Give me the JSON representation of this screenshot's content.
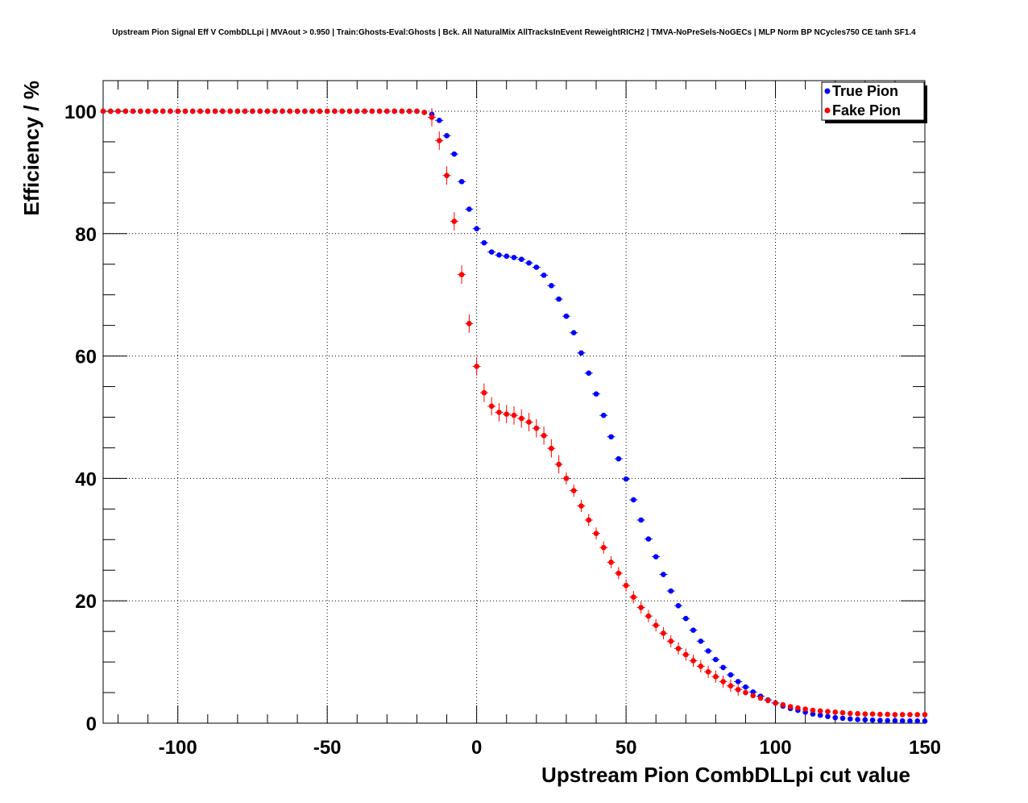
{
  "chart_data": {
    "type": "scatter",
    "title": "Upstream Pion Signal Eff V CombDLLpi | MVAout > 0.950 | Train:Ghosts-Eval:Ghosts | Bck. All NaturalMix AllTracksInEvent ReweightRICH2 | TMVA-NoPreSels-NoGECs | MLP Norm BP NCycles750 CE tanh SF1.4",
    "xlabel": "Upstream Pion CombDLLpi cut value",
    "ylabel": "Efficiency / %",
    "xlim": [
      -125,
      150
    ],
    "ylim": [
      0,
      105
    ],
    "x_ticks": [
      -100,
      -50,
      0,
      50,
      100,
      150
    ],
    "x_tick_labels": [
      "-100",
      "-50",
      "0",
      "50",
      "100",
      "150"
    ],
    "y_ticks": [
      0,
      20,
      40,
      60,
      80,
      100
    ],
    "y_tick_labels": [
      "0",
      "20",
      "40",
      "60",
      "80",
      "100"
    ],
    "grid": true,
    "legend_position": "top-right",
    "x": [
      -125,
      -122.5,
      -120,
      -117.5,
      -115,
      -112.5,
      -110,
      -107.5,
      -105,
      -102.5,
      -100,
      -97.5,
      -95,
      -92.5,
      -90,
      -87.5,
      -85,
      -82.5,
      -80,
      -77.5,
      -75,
      -72.5,
      -70,
      -67.5,
      -65,
      -62.5,
      -60,
      -57.5,
      -55,
      -52.5,
      -50,
      -47.5,
      -45,
      -42.5,
      -40,
      -37.5,
      -35,
      -32.5,
      -30,
      -27.5,
      -25,
      -22.5,
      -20,
      -17.5,
      -15,
      -12.5,
      -10,
      -7.5,
      -5,
      -2.5,
      0,
      2.5,
      5,
      7.5,
      10,
      12.5,
      15,
      17.5,
      20,
      22.5,
      25,
      27.5,
      30,
      32.5,
      35,
      37.5,
      40,
      42.5,
      45,
      47.5,
      50,
      52.5,
      55,
      57.5,
      60,
      62.5,
      65,
      67.5,
      70,
      72.5,
      75,
      77.5,
      80,
      82.5,
      85,
      87.5,
      90,
      92.5,
      95,
      97.5,
      100,
      102.5,
      105,
      107.5,
      110,
      112.5,
      115,
      117.5,
      120,
      122.5,
      125,
      127.5,
      130,
      132.5,
      135,
      137.5,
      140,
      142.5,
      145,
      147.5,
      150
    ],
    "series": [
      {
        "name": "True Pion",
        "color": "#0000ff",
        "values": [
          100,
          100,
          100,
          100,
          100,
          100,
          100,
          100,
          100,
          100,
          100,
          100,
          100,
          100,
          100,
          100,
          100,
          100,
          100,
          100,
          100,
          100,
          100,
          100,
          100,
          100,
          100,
          100,
          100,
          100,
          100,
          100,
          100,
          100,
          100,
          100,
          100,
          100,
          100,
          100,
          100,
          100,
          100,
          99.8,
          99.5,
          98.5,
          96,
          93,
          88.5,
          84,
          80.8,
          78.5,
          77,
          76.5,
          76.3,
          76.1,
          75.8,
          75.2,
          74.5,
          73.2,
          71.5,
          69.3,
          66.5,
          63.8,
          60.5,
          57.2,
          53.8,
          50.3,
          46.8,
          43.2,
          39.9,
          36.5,
          33.2,
          30.1,
          27.2,
          24.3,
          21.6,
          19.2,
          17.1,
          15.2,
          13.4,
          11.8,
          10.4,
          9.1,
          7.9,
          6.8,
          5.9,
          5.1,
          4.4,
          3.8,
          3.3,
          2.8,
          2.4,
          2.1,
          1.8,
          1.5,
          1.3,
          1.1,
          0.9,
          0.8,
          0.7,
          0.6,
          0.55,
          0.5,
          0.45,
          0.42,
          0.4,
          0.38,
          0.36,
          0.35,
          0.34
        ]
      },
      {
        "name": "Fake Pion",
        "color": "#ff0000",
        "values": [
          100,
          100,
          100,
          100,
          100,
          100,
          100,
          100,
          100,
          100,
          100,
          100,
          100,
          100,
          100,
          100,
          100,
          100,
          100,
          100,
          100,
          100,
          100,
          100,
          100,
          100,
          100,
          100,
          100,
          100,
          100,
          100,
          100,
          100,
          100,
          100,
          100,
          100,
          100,
          100,
          100,
          100,
          100,
          99.8,
          99,
          95.2,
          89.5,
          82,
          73.3,
          65.3,
          58.3,
          54,
          51.8,
          50.8,
          50.5,
          50.3,
          49.8,
          49.2,
          48.2,
          47,
          44.9,
          42.3,
          40,
          38,
          35.5,
          33.2,
          31,
          28.7,
          26.3,
          24.5,
          22.5,
          20.6,
          18.9,
          17.5,
          16,
          14.7,
          13.4,
          12.2,
          11.2,
          10.2,
          9.3,
          8.4,
          7.6,
          6.8,
          6.1,
          5.5,
          5,
          4.5,
          4.1,
          3.7,
          3.3,
          3,
          2.7,
          2.5,
          2.3,
          2.1,
          2,
          1.9,
          1.8,
          1.7,
          1.6,
          1.55,
          1.5,
          1.5,
          1.45,
          1.45,
          1.4,
          1.4,
          1.4,
          1.4,
          1.4
        ]
      }
    ]
  }
}
